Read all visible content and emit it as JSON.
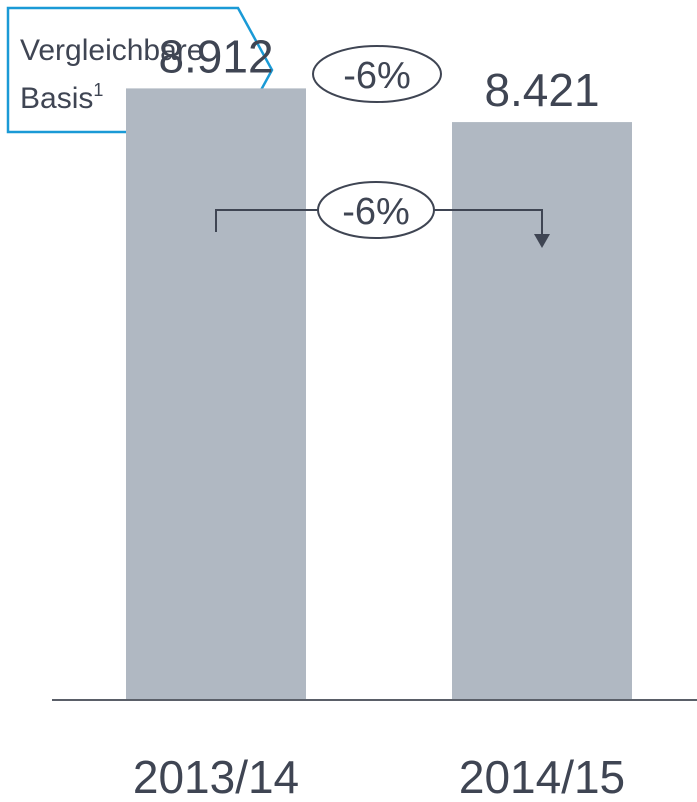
{
  "badge": {
    "label_line1": "Vergleichbare",
    "label_line2": "Basis",
    "footnote": "1",
    "change": "-6%"
  },
  "colors": {
    "accent": "#1a9ad6",
    "bar": "#b0b8c2",
    "text": "#3f4553",
    "axis": "#5a5f68"
  },
  "chart_data": {
    "type": "bar",
    "categories": [
      "2013/14",
      "2014/15"
    ],
    "values": [
      8912,
      8421
    ],
    "value_labels": [
      "8.912",
      "8.421"
    ],
    "change_label": "-6%",
    "ylim": [
      0,
      10200
    ],
    "grid": false,
    "legend": "none"
  }
}
